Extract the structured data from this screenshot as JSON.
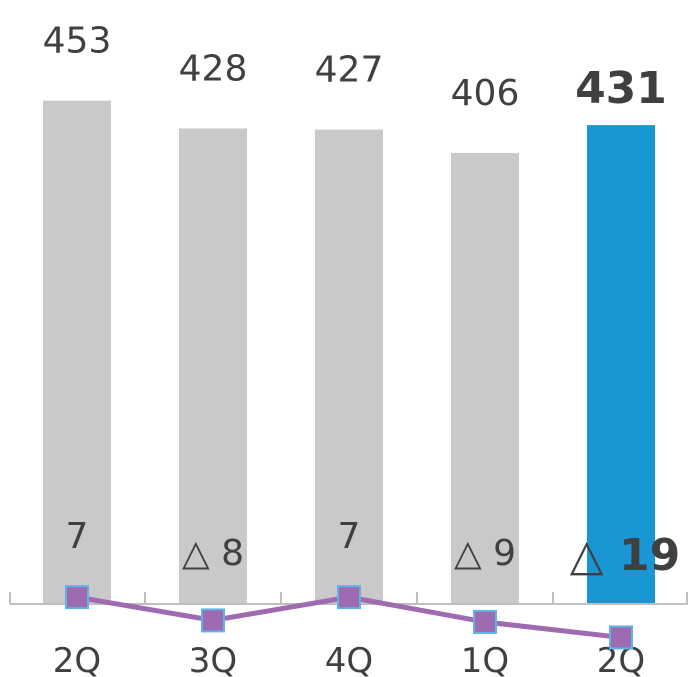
{
  "chart_data": {
    "type": "bar",
    "categories": [
      "2Q",
      "3Q",
      "4Q",
      "1Q",
      "2Q"
    ],
    "series": [
      {
        "type": "bar",
        "values": [
          453,
          428,
          427,
          406,
          431
        ],
        "labels": [
          "453",
          "428",
          "427",
          "406",
          "431"
        ],
        "highlight_index": 4,
        "color": "#c9c9c9",
        "highlight_color": "#1a96d4"
      },
      {
        "type": "line",
        "values": [
          7,
          -8,
          7,
          -9,
          -19
        ],
        "labels": [
          "7",
          "△ 8",
          "7",
          "△ 9",
          "△ 19"
        ],
        "highlight_index": 4,
        "color": "#9e6bb0",
        "marker_color": "#9e6bb0",
        "marker_edge_color": "#5fb3e6"
      }
    ],
    "axis_color": "#bfbfbf",
    "text_color": "#404040"
  }
}
